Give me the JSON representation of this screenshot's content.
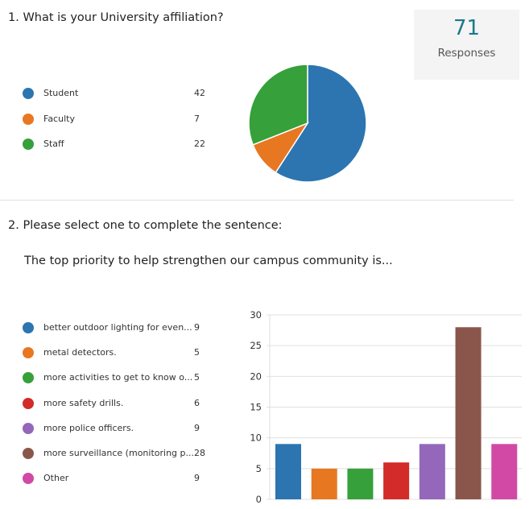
{
  "q1": {
    "title": "1.  What is your University affiliation?",
    "responses": {
      "count": "71",
      "label": "Responses"
    },
    "chart_data": {
      "type": "pie",
      "categories": [
        "Student",
        "Faculty",
        "Staff"
      ],
      "values": [
        42,
        7,
        22
      ],
      "colors": [
        "#2c75b0",
        "#e87722",
        "#36a03b"
      ],
      "legend": "left"
    }
  },
  "q2": {
    "title": "2.  Please select one to complete the sentence:",
    "subtitle": "The top priority to help strengthen our campus community is...",
    "chart_data": {
      "type": "bar",
      "categories": [
        "better outdoor lighting for even...",
        "metal detectors.",
        "more activities to get to know o...",
        "more safety drills.",
        "more police officers.",
        "more surveillance (monitoring p...",
        "Other"
      ],
      "values": [
        9,
        5,
        5,
        6,
        9,
        28,
        9
      ],
      "colors": [
        "#2c75b0",
        "#e87722",
        "#36a03b",
        "#d32a2a",
        "#9467bb",
        "#8a564c",
        "#d149a5"
      ],
      "ylim": [
        0,
        30
      ],
      "yticks": [
        "0",
        "5",
        "10",
        "15",
        "20",
        "25",
        "30"
      ],
      "grid": true,
      "legend": "left"
    }
  }
}
